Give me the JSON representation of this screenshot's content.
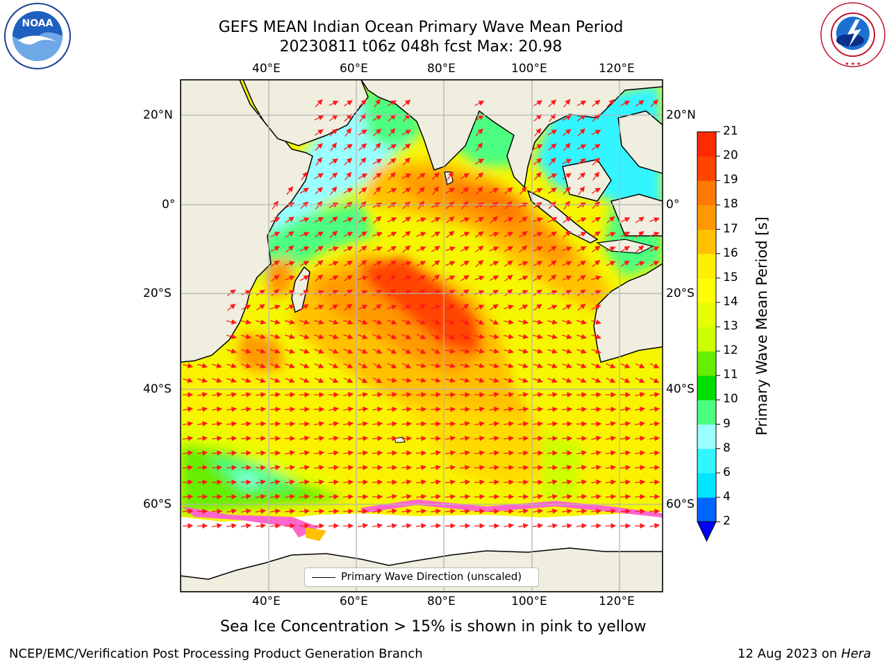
{
  "title_line1": "GEFS MEAN Indian Ocean Primary Wave Mean Period",
  "title_line2": "20230811 t06z 048h fcst   Max: 20.98",
  "logos": {
    "left": {
      "icon": "noaa-logo",
      "text": "NOAA"
    },
    "right": {
      "icon": "nws-logo",
      "text": "NATIONAL WEATHER SERVICE"
    }
  },
  "map": {
    "lon_ticks": [
      "40°E",
      "60°E",
      "80°E",
      "100°E",
      "120°E"
    ],
    "lat_ticks_left": [
      "20°N",
      "0°",
      "20°S",
      "40°S",
      "60°S"
    ],
    "lat_ticks_right": [
      "20°N",
      "0°",
      "20°S",
      "40°S",
      "60°S"
    ],
    "legend": "Primary Wave Direction (unscaled)",
    "colors": {
      "land": "#efeedf",
      "ice_free": "#ffffff",
      "arrow": "#ff1a1a",
      "grid": "#b4b4b4"
    }
  },
  "colorbar": {
    "title": "Primary Wave Mean Period [s]",
    "labels": [
      "2",
      "4",
      "6",
      "8",
      "9",
      "10",
      "11",
      "12",
      "13",
      "14",
      "15",
      "16",
      "17",
      "18",
      "19",
      "20",
      "21"
    ],
    "colors": [
      "#0066ff",
      "#00e5ff",
      "#33f5ff",
      "#99ffff",
      "#4dff80",
      "#00e000",
      "#66ee00",
      "#ccff00",
      "#e6ff00",
      "#ffff00",
      "#ffee00",
      "#ffc000",
      "#ff9900",
      "#ff7a00",
      "#ff4400",
      "#ff2a00"
    ],
    "under_color": "#0000ff"
  },
  "caption": "Sea Ice Concentration > 15% is shown in pink to yellow",
  "footer_left": "NCEP/EMC/Verification Post Processing Product Generation Branch",
  "footer_right_prefix": "12 Aug 2023 on ",
  "footer_right_machine": "Hera"
}
